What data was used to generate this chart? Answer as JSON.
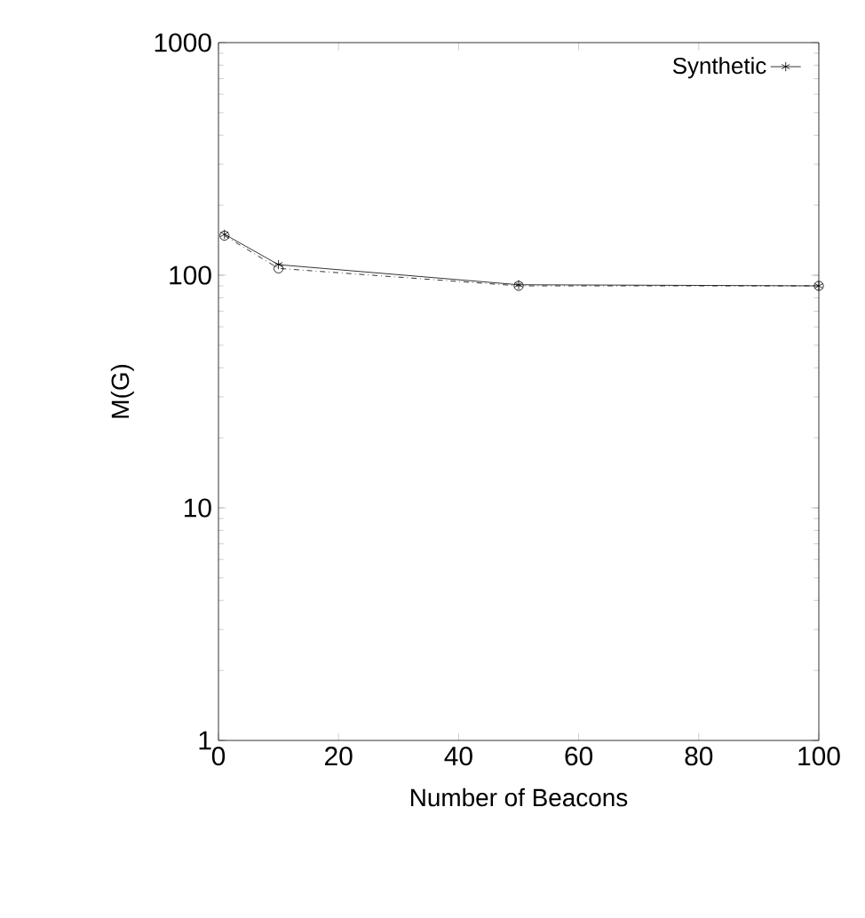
{
  "chart_data": {
    "type": "line",
    "xlabel": "Number of Beacons",
    "ylabel": "M(G)",
    "log": "y",
    "legend": "top right",
    "grid": false,
    "x": [
      1,
      10,
      50,
      100
    ],
    "series": [
      {
        "color": "#000000",
        "values": [
          148,
          107,
          90,
          90
        ],
        "marker": "circle",
        "line_style": "dashed"
      },
      {
        "name": "Synthetic",
        "color": "#000000",
        "values": [
          150,
          111,
          91,
          90
        ],
        "marker": "cross",
        "line_style": "solid"
      }
    ],
    "xlim": [
      0,
      100
    ],
    "xticks": [
      0,
      20,
      40,
      60,
      80,
      100
    ],
    "ylim": [
      1,
      1000
    ],
    "yticks": [
      1,
      10,
      100,
      1000
    ]
  }
}
